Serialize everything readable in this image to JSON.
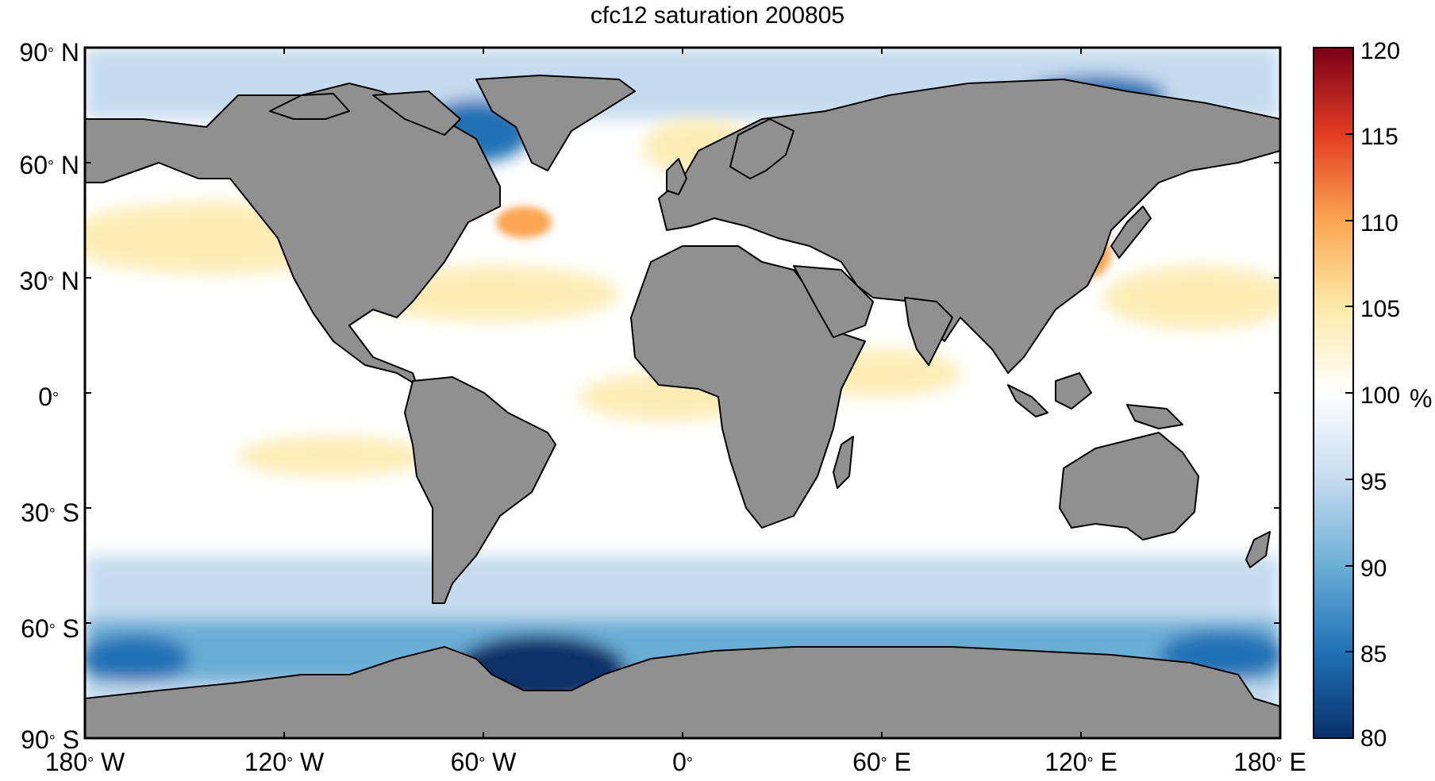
{
  "title": "cfc12 saturation 200805",
  "y_ticks": [
    {
      "deg": "90",
      "hemi": "N"
    },
    {
      "deg": "60",
      "hemi": "N"
    },
    {
      "deg": "30",
      "hemi": "N"
    },
    {
      "deg": "0",
      "hemi": ""
    },
    {
      "deg": "30",
      "hemi": "S"
    },
    {
      "deg": "60",
      "hemi": "S"
    },
    {
      "deg": "90",
      "hemi": "S"
    }
  ],
  "x_ticks": [
    {
      "deg": "180",
      "hemi": "W"
    },
    {
      "deg": "120",
      "hemi": "W"
    },
    {
      "deg": "60",
      "hemi": "W"
    },
    {
      "deg": "0",
      "hemi": ""
    },
    {
      "deg": "60",
      "hemi": "E"
    },
    {
      "deg": "120",
      "hemi": "E"
    },
    {
      "deg": "180",
      "hemi": "E"
    }
  ],
  "colorbar": {
    "ticks": [
      "120",
      "115",
      "110",
      "105",
      "100",
      "95",
      "90",
      "85",
      "80"
    ],
    "unit": "%",
    "range": [
      80,
      120
    ],
    "colors": [
      "#08306b",
      "#2171b5",
      "#6baed6",
      "#c6dbef",
      "#ffffff",
      "#fde9a8",
      "#fca552",
      "#e33b22",
      "#7a0019"
    ]
  },
  "colors": {
    "land": "#909090",
    "ocean_base": "#ffffff",
    "frame": "#000000"
  }
}
